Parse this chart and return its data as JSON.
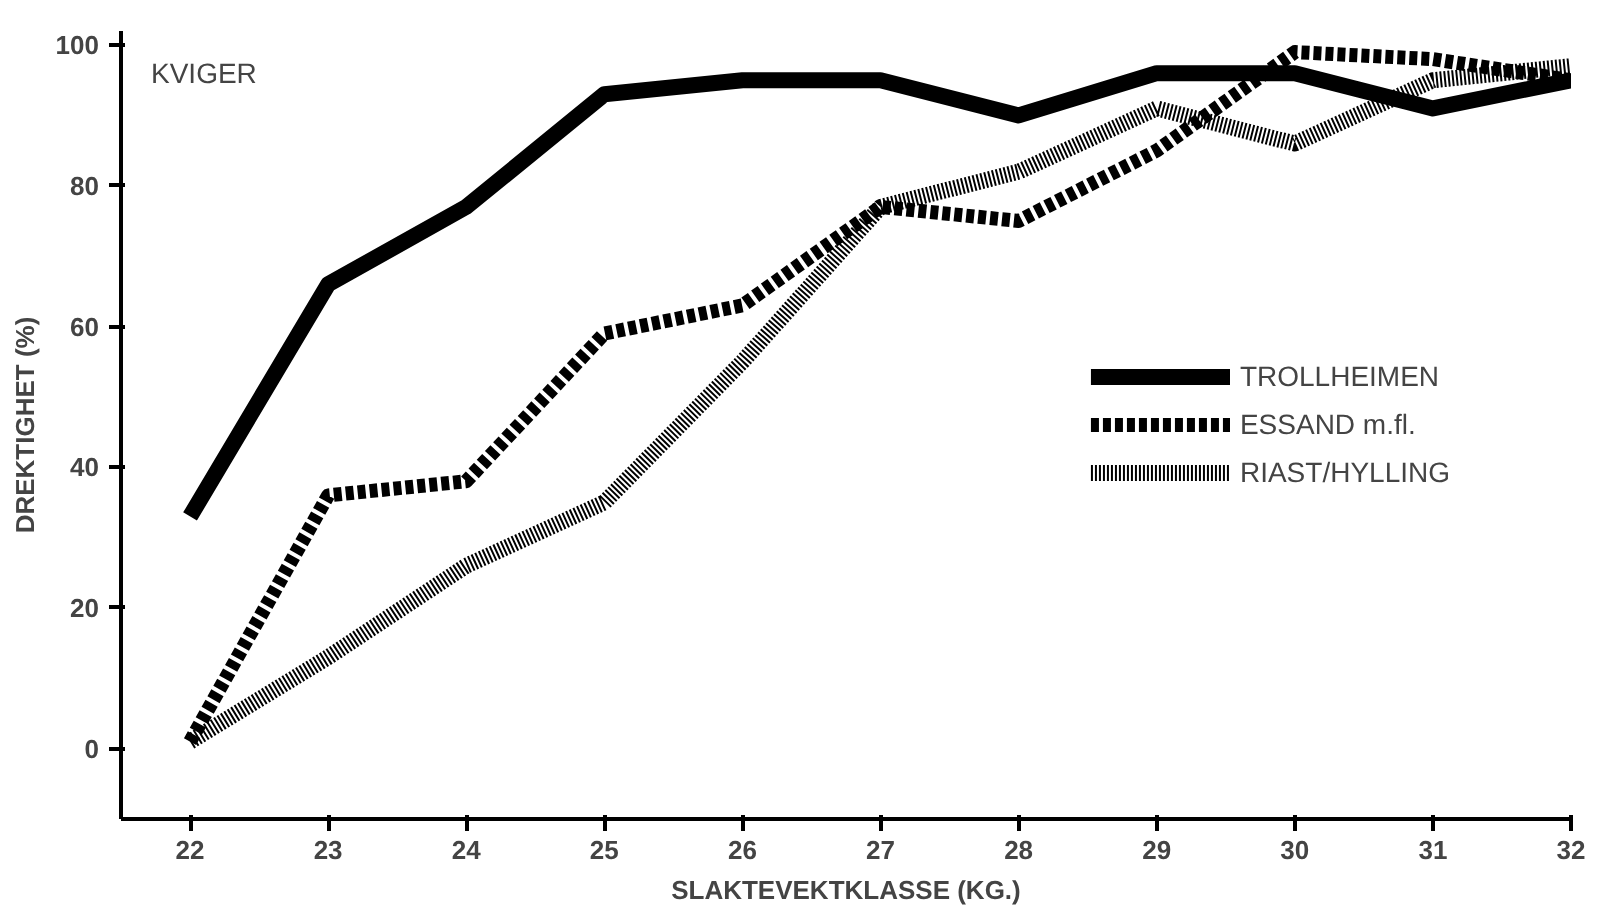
{
  "chart_data": {
    "type": "line",
    "xlabel": "SLAKTEVEKTKLASSE (KG.)",
    "ylabel": "DREKTIGHET (%)",
    "annotations": [
      "KVIGER"
    ],
    "x": [
      22,
      23,
      24,
      25,
      26,
      27,
      28,
      29,
      30,
      31,
      32
    ],
    "series": [
      {
        "name": "TROLLHEIMEN",
        "color": "#000000",
        "line_style": "solid",
        "values": [
          33,
          66,
          77,
          93,
          95,
          95,
          90,
          96,
          96,
          91,
          95
        ]
      },
      {
        "name": "ESSAND m.fl.",
        "color": "#000000",
        "line_style": "dashed",
        "values": [
          1,
          36,
          38,
          59,
          63,
          77,
          75,
          85,
          99,
          98,
          95
        ]
      },
      {
        "name": "RIAST/HYLLING",
        "color": "#000000",
        "line_style": "dotted",
        "values": [
          1,
          13,
          26,
          35,
          55,
          77,
          82,
          91,
          86,
          95,
          97
        ]
      }
    ],
    "xlim": [
      21.5,
      32
    ],
    "ylim": [
      -10,
      102
    ],
    "xticks": [
      22,
      23,
      24,
      25,
      26,
      27,
      28,
      29,
      30,
      31,
      32
    ],
    "yticks": [
      0,
      20,
      40,
      60,
      80,
      100
    ],
    "grid": false,
    "legend": "right",
    "marker": "none"
  }
}
